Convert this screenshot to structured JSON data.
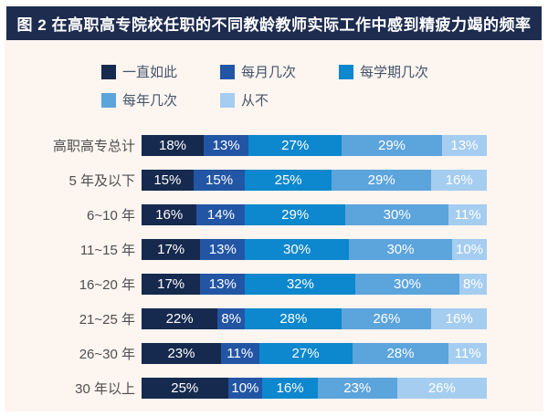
{
  "title": "图 2 在高职高专院校任职的不同教龄教师实际工作中感到精疲力竭的频率",
  "colors": {
    "title_bar_bg": "#1e2c50",
    "title_text": "#ffffff",
    "page_bg": "#fcf5f0",
    "outer_border": "#ffffff",
    "category_label_text": "#4f4f4f",
    "legend_text": "#44546a",
    "bar_value_text": "#ffffff",
    "series_colors": [
      "#16294e",
      "#2355a5",
      "#0d87cd",
      "#5ca4dc",
      "#a5cdf0"
    ]
  },
  "chart_data": {
    "type": "bar",
    "stacked": true,
    "orientation": "horizontal",
    "unit": "%",
    "title": "图 2 在高职高专院校任职的不同教龄教师实际工作中感到精疲力竭的频率",
    "legend_position": "top",
    "xlim": [
      0,
      100
    ],
    "grid": false,
    "categories": [
      "高职高专总计",
      "5 年及以下",
      "6~10 年",
      "11~15 年",
      "16~20 年",
      "21~25 年",
      "26~30 年",
      "30 年以上"
    ],
    "series": [
      {
        "name": "一直如此",
        "color": "#16294e",
        "values": [
          18,
          15,
          16,
          17,
          17,
          22,
          23,
          25
        ]
      },
      {
        "name": "每月几次",
        "color": "#2355a5",
        "values": [
          13,
          15,
          14,
          13,
          13,
          8,
          11,
          10
        ]
      },
      {
        "name": "每学期几次",
        "color": "#0d87cd",
        "values": [
          27,
          25,
          29,
          30,
          32,
          28,
          27,
          16
        ]
      },
      {
        "name": "每年几次",
        "color": "#5ca4dc",
        "values": [
          29,
          29,
          30,
          30,
          30,
          26,
          28,
          23
        ]
      },
      {
        "name": "从不",
        "color": "#a5cdf0",
        "values": [
          13,
          16,
          11,
          10,
          8,
          16,
          11,
          26
        ]
      }
    ]
  }
}
